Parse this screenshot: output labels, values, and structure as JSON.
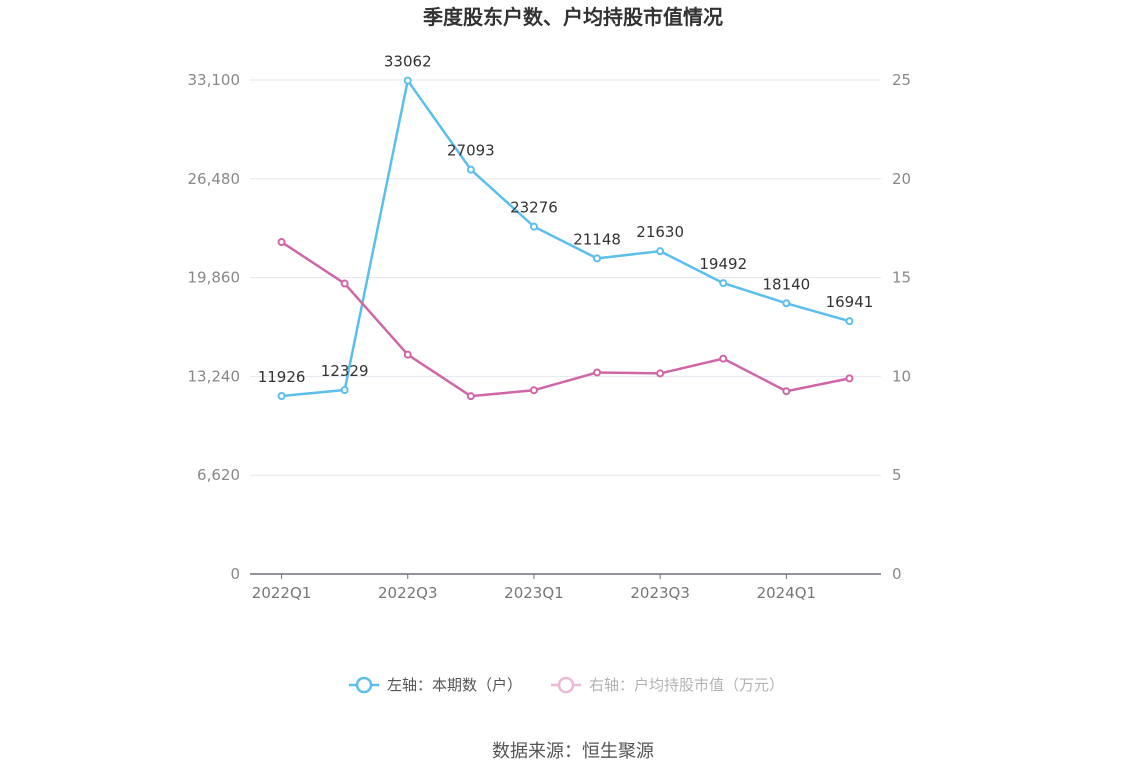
{
  "chart_data": {
    "type": "line",
    "title": "季度股东户数、户均持股市值情况",
    "categories": [
      "2022Q1",
      "2022Q2",
      "2022Q3",
      "2022Q4",
      "2023Q1",
      "2023Q2",
      "2023Q3",
      "2023Q4",
      "2024Q1",
      "2024Q2"
    ],
    "x_tick_labels": [
      "2022Q1",
      "2022Q3",
      "2023Q1",
      "2023Q3",
      "2024Q1"
    ],
    "y_left": {
      "min": 0,
      "max": 33100,
      "ticks": [
        "0",
        "6,620",
        "13,240",
        "19,860",
        "26,480",
        "33,100"
      ]
    },
    "y_right": {
      "min": 0,
      "max": 25,
      "ticks": [
        "0",
        "5",
        "10",
        "15",
        "20",
        "25"
      ]
    },
    "grid": true,
    "legend_position": "bottom",
    "series": [
      {
        "name": "左轴：本期数（户）",
        "axis": "left",
        "color": "#5bbfee",
        "values": [
          11926,
          12329,
          33062,
          27093,
          23276,
          21148,
          21630,
          19492,
          18140,
          16941
        ],
        "labels": [
          "11926",
          "12329",
          "33062",
          "27093",
          "23276",
          "21148",
          "21630",
          "19492",
          "18140",
          "16941"
        ]
      },
      {
        "name": "右轴：户均持股市值（万元）",
        "axis": "right",
        "color": "#d066a8",
        "values": [
          16.8,
          14.7,
          11.1,
          9.0,
          9.3,
          10.2,
          10.15,
          10.9,
          9.25,
          9.9
        ]
      }
    ]
  },
  "source": "数据来源：恒生聚源"
}
